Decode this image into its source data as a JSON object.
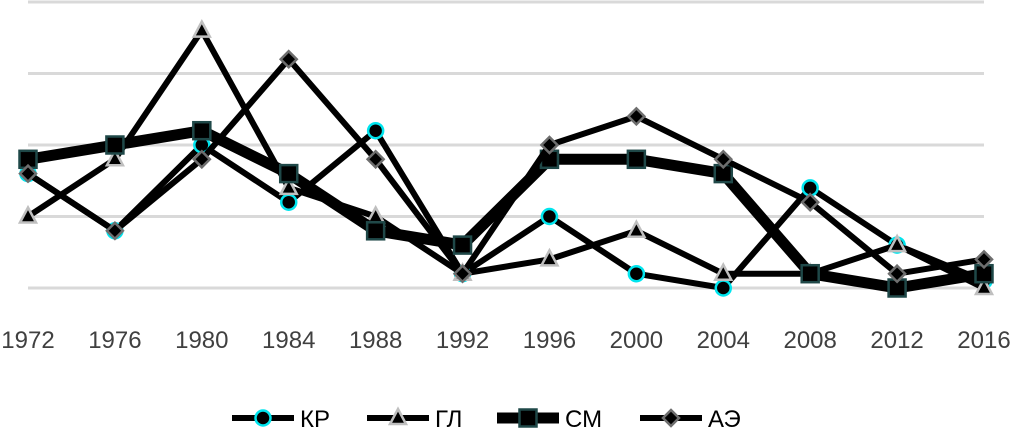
{
  "chart_data": {
    "type": "line",
    "title": "",
    "xlabel": "",
    "ylabel": "",
    "categories": [
      "1972",
      "1976",
      "1980",
      "1984",
      "1988",
      "1992",
      "1996",
      "2000",
      "2004",
      "2008",
      "2012",
      "2016"
    ],
    "ylim": [
      0,
      4
    ],
    "grid": true,
    "legend_position": "bottom",
    "series": [
      {
        "name": "КР",
        "marker": "circle",
        "marker_stroke": "#00e5ee",
        "values": [
          1.6,
          0.8,
          2.0,
          1.2,
          2.2,
          0.2,
          1.0,
          0.2,
          0.0,
          1.4,
          0.6,
          0.1
        ]
      },
      {
        "name": "ГЛ",
        "marker": "triangle",
        "marker_stroke": "#bfbfbf",
        "values": [
          1.0,
          1.8,
          3.6,
          1.4,
          1.0,
          0.2,
          0.4,
          0.8,
          0.2,
          0.2,
          0.6,
          0.0
        ]
      },
      {
        "name": "СМ",
        "marker": "square",
        "marker_stroke": "#1f4848",
        "values": [
          1.8,
          2.0,
          2.2,
          1.6,
          0.8,
          0.6,
          1.8,
          1.8,
          1.6,
          0.2,
          0.0,
          0.2
        ]
      },
      {
        "name": "АЭ",
        "marker": "diamond",
        "marker_stroke": "#6e6e6e",
        "values": [
          1.6,
          0.8,
          1.8,
          3.2,
          1.8,
          0.2,
          2.0,
          2.4,
          1.8,
          1.2,
          0.2,
          0.4
        ]
      }
    ]
  }
}
